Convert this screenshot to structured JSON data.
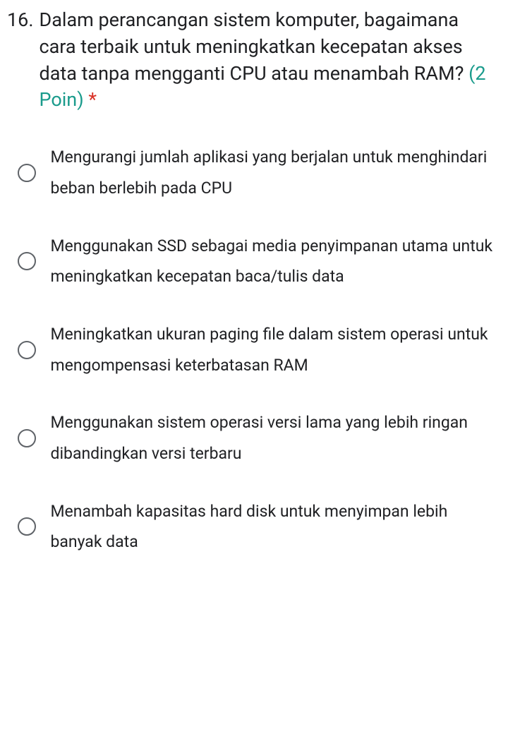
{
  "question": {
    "number": "16.",
    "text": "Dalam perancangan sistem komputer, bagaimana cara terbaik untuk meningkatkan kecepatan akses data tanpa mengganti CPU atau menambah RAM?",
    "points": "(2 Poin)",
    "required": "*"
  },
  "options": [
    {
      "text": "Mengurangi jumlah aplikasi yang berjalan untuk menghindari beban berlebih pada CPU"
    },
    {
      "text": "Menggunakan SSD sebagai media penyimpanan utama untuk meningkatkan kecepatan baca/tulis data"
    },
    {
      "text": "Meningkatkan ukuran paging file dalam sistem operasi untuk mengompensasi keterbatasan RAM"
    },
    {
      "text": "Menggunakan sistem operasi versi lama yang lebih ringan dibandingkan versi terbaru"
    },
    {
      "text": "Menambah kapasitas hard disk untuk menyimpan lebih banyak data"
    }
  ],
  "colors": {
    "text_primary": "#202124",
    "points_color": "#1a9b8c",
    "required_color": "#d93025",
    "radio_border": "#5f6368",
    "background": "#ffffff"
  },
  "typography": {
    "question_fontsize": 27,
    "option_fontsize": 23,
    "font_family": "Roboto, Arial, sans-serif"
  }
}
